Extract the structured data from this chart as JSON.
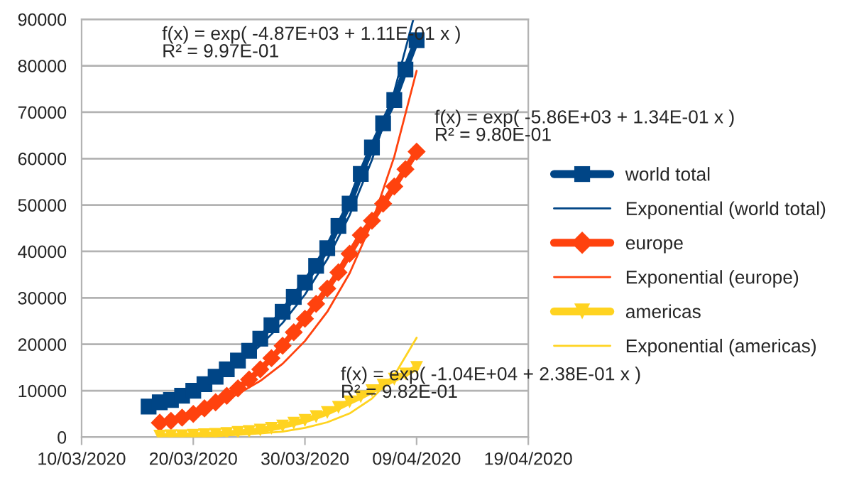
{
  "chart_data": {
    "type": "line",
    "annotations": [
      "f(x) = exp( -4.87E+03 + 1.11E-01 x )\nR² = 9.97E-01",
      "f(x) = exp( -5.86E+03 + 1.34E-01 x )\nR² = 9.80E-01",
      "f(x) = exp( -1.04E+04 + 2.38E-01 x )\nR² = 9.82E-01"
    ],
    "xlim": [
      "2020-03-10",
      "2020-04-19"
    ],
    "xticks": [
      {
        "value": "2020-03-10",
        "label": "10/03/2020"
      },
      {
        "value": "2020-03-20",
        "label": "20/03/2020"
      },
      {
        "value": "2020-03-30",
        "label": "30/03/2020"
      },
      {
        "value": "2020-04-09",
        "label": "09/04/2020"
      },
      {
        "value": "2020-04-19",
        "label": "19/04/2020"
      }
    ],
    "ylim": [
      0,
      90000
    ],
    "yticks": [
      0,
      10000,
      20000,
      30000,
      40000,
      50000,
      60000,
      70000,
      80000,
      90000
    ],
    "grid": "y",
    "legend": "right",
    "series": [
      {
        "name": "world total",
        "color": "#004586",
        "marker": "square",
        "x": [
          "2020-03-16",
          "2020-03-17",
          "2020-03-18",
          "2020-03-19",
          "2020-03-20",
          "2020-03-21",
          "2020-03-22",
          "2020-03-23",
          "2020-03-24",
          "2020-03-25",
          "2020-03-26",
          "2020-03-27",
          "2020-03-28",
          "2020-03-29",
          "2020-03-30",
          "2020-03-31",
          "2020-04-01",
          "2020-04-02",
          "2020-04-03",
          "2020-04-04",
          "2020-04-05",
          "2020-04-06",
          "2020-04-07",
          "2020-04-08",
          "2020-04-09"
        ],
        "values": [
          6600,
          7500,
          8000,
          8900,
          10000,
          11400,
          13000,
          14600,
          16500,
          18600,
          21200,
          24100,
          27000,
          30200,
          33300,
          36900,
          40700,
          45500,
          50300,
          56700,
          62400,
          67600,
          72600,
          79200,
          85500
        ]
      },
      {
        "name": "Exponential (world total)",
        "color": "#004586",
        "marker": "none",
        "x": [
          "2020-03-16",
          "2020-03-18",
          "2020-03-20",
          "2020-03-22",
          "2020-03-24",
          "2020-03-26",
          "2020-03-28",
          "2020-03-30",
          "2020-04-01",
          "2020-04-03",
          "2020-04-05",
          "2020-04-07",
          "2020-04-08T17:00"
        ],
        "values": [
          6500,
          8100,
          10100,
          12600,
          15800,
          19700,
          24600,
          30700,
          38300,
          47800,
          59700,
          74500,
          90000
        ]
      },
      {
        "name": "europe",
        "color": "#ff420e",
        "marker": "diamond",
        "x": [
          "2020-03-17",
          "2020-03-18",
          "2020-03-19",
          "2020-03-20",
          "2020-03-21",
          "2020-03-22",
          "2020-03-23",
          "2020-03-24",
          "2020-03-25",
          "2020-03-26",
          "2020-03-27",
          "2020-03-28",
          "2020-03-29",
          "2020-03-30",
          "2020-03-31",
          "2020-04-01",
          "2020-04-02",
          "2020-04-03",
          "2020-04-04",
          "2020-04-05",
          "2020-04-06",
          "2020-04-07",
          "2020-04-08",
          "2020-04-09"
        ],
        "values": [
          3100,
          3500,
          4200,
          5000,
          6200,
          7500,
          8900,
          10500,
          12400,
          14600,
          17000,
          19700,
          22600,
          25500,
          28700,
          32000,
          35500,
          39500,
          43500,
          46600,
          50300,
          54000,
          57700,
          61500
        ]
      },
      {
        "name": "Exponential (europe)",
        "color": "#ff420e",
        "marker": "none",
        "x": [
          "2020-03-17",
          "2020-03-18",
          "2020-03-20",
          "2020-03-22",
          "2020-03-24",
          "2020-03-26",
          "2020-03-28",
          "2020-03-30",
          "2020-04-01",
          "2020-04-03",
          "2020-04-05",
          "2020-04-07",
          "2020-04-09"
        ],
        "values": [
          3600,
          4100,
          5400,
          7100,
          9300,
          12100,
          15800,
          20700,
          27000,
          35300,
          46200,
          60400,
          78900
        ]
      },
      {
        "name": "americas",
        "color": "#ffd320",
        "marker": "triangle",
        "x": [
          "2020-03-17",
          "2020-03-18",
          "2020-03-19",
          "2020-03-20",
          "2020-03-21",
          "2020-03-22",
          "2020-03-23",
          "2020-03-24",
          "2020-03-25",
          "2020-03-26",
          "2020-03-27",
          "2020-03-28",
          "2020-03-29",
          "2020-03-30",
          "2020-03-31",
          "2020-04-01",
          "2020-04-02",
          "2020-04-03",
          "2020-04-04",
          "2020-04-05",
          "2020-04-06",
          "2020-04-07",
          "2020-04-08",
          "2020-04-09"
        ],
        "values": [
          200,
          300,
          300,
          400,
          500,
          600,
          800,
          1000,
          1200,
          1500,
          1900,
          2400,
          3000,
          3600,
          4400,
          5300,
          6400,
          7600,
          8700,
          10000,
          11200,
          12500,
          13600,
          15000
        ]
      },
      {
        "name": "Exponential (americas)",
        "color": "#ffd320",
        "marker": "none",
        "x": [
          "2020-03-17",
          "2020-03-18",
          "2020-03-20",
          "2020-03-22",
          "2020-03-24",
          "2020-03-26",
          "2020-03-28",
          "2020-03-30",
          "2020-04-01",
          "2020-04-03",
          "2020-04-05",
          "2020-04-07",
          "2020-04-09"
        ],
        "values": [
          100,
          100,
          200,
          300,
          500,
          800,
          1200,
          2000,
          3200,
          5100,
          8300,
          13300,
          21400
        ]
      }
    ]
  }
}
